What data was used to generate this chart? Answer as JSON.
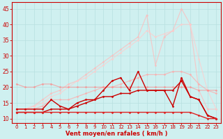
{
  "x": [
    0,
    1,
    2,
    3,
    4,
    5,
    6,
    7,
    8,
    9,
    10,
    11,
    12,
    13,
    14,
    15,
    16,
    17,
    18,
    19,
    20,
    21,
    22,
    23
  ],
  "series": [
    {
      "color": "#ffbbbb",
      "alpha": 0.7,
      "lw": 0.9,
      "marker": "D",
      "ms": 1.5,
      "values": [
        13,
        13,
        14,
        16,
        18,
        19,
        21,
        22,
        24,
        26,
        28,
        30,
        32,
        34,
        36,
        43,
        27,
        36,
        38,
        45,
        40,
        19,
        13,
        13
      ]
    },
    {
      "color": "#ffcccc",
      "alpha": 0.7,
      "lw": 0.9,
      "marker": "D",
      "ms": 1.5,
      "values": [
        13,
        13,
        14,
        15,
        17,
        18,
        20,
        22,
        23,
        25,
        27,
        29,
        31,
        33,
        35,
        38,
        36,
        37,
        38,
        40,
        40,
        29,
        19,
        13
      ]
    },
    {
      "color": "#ffaaaa",
      "alpha": 0.7,
      "lw": 0.9,
      "marker": "D",
      "ms": 1.5,
      "values": [
        13,
        13,
        13,
        14,
        16,
        16,
        16,
        17,
        18,
        19,
        20,
        20,
        21,
        22,
        23,
        24,
        24,
        24,
        25,
        25,
        24,
        21,
        19,
        18
      ]
    },
    {
      "color": "#ff8888",
      "alpha": 0.6,
      "lw": 0.9,
      "marker": "D",
      "ms": 1.5,
      "values": [
        21,
        20,
        20,
        21,
        21,
        20,
        20,
        20,
        20,
        20,
        20,
        20,
        20,
        20,
        20,
        20,
        20,
        20,
        20,
        20,
        20,
        19,
        19,
        19
      ]
    },
    {
      "color": "#cc0000",
      "alpha": 1.0,
      "lw": 1.0,
      "marker": "D",
      "ms": 1.5,
      "values": [
        13,
        13,
        13,
        13,
        16,
        14,
        13,
        15,
        16,
        16,
        19,
        22,
        23,
        19,
        25,
        19,
        19,
        19,
        14,
        23,
        17,
        16,
        11,
        10
      ]
    },
    {
      "color": "#cc0000",
      "alpha": 1.0,
      "lw": 1.0,
      "marker": "D",
      "ms": 1.5,
      "values": [
        12,
        12,
        12,
        12,
        13,
        13,
        13,
        14,
        15,
        16,
        17,
        17,
        18,
        18,
        19,
        19,
        19,
        19,
        19,
        22,
        17,
        16,
        11,
        10
      ]
    },
    {
      "color": "#dd2222",
      "alpha": 1.0,
      "lw": 1.0,
      "marker": "D",
      "ms": 1.5,
      "values": [
        12,
        12,
        12,
        12,
        12,
        12,
        12,
        12,
        12,
        12,
        12,
        12,
        12,
        12,
        12,
        12,
        12,
        12,
        12,
        12,
        12,
        11,
        10,
        10
      ]
    }
  ],
  "xlim": [
    -0.5,
    23.5
  ],
  "ylim": [
    8.5,
    47
  ],
  "yticks": [
    10,
    15,
    20,
    25,
    30,
    35,
    40,
    45
  ],
  "xticks": [
    0,
    1,
    2,
    3,
    4,
    5,
    6,
    7,
    8,
    9,
    10,
    11,
    12,
    13,
    14,
    15,
    16,
    17,
    18,
    19,
    20,
    21,
    22,
    23
  ],
  "xlabel": "Vent moyen/en rafales ( km/h )",
  "bg_color": "#cff0f0",
  "grid_color": "#b8e0e0",
  "axis_color": "#cc0000",
  "label_color": "#cc0000",
  "tick_color": "#cc0000"
}
